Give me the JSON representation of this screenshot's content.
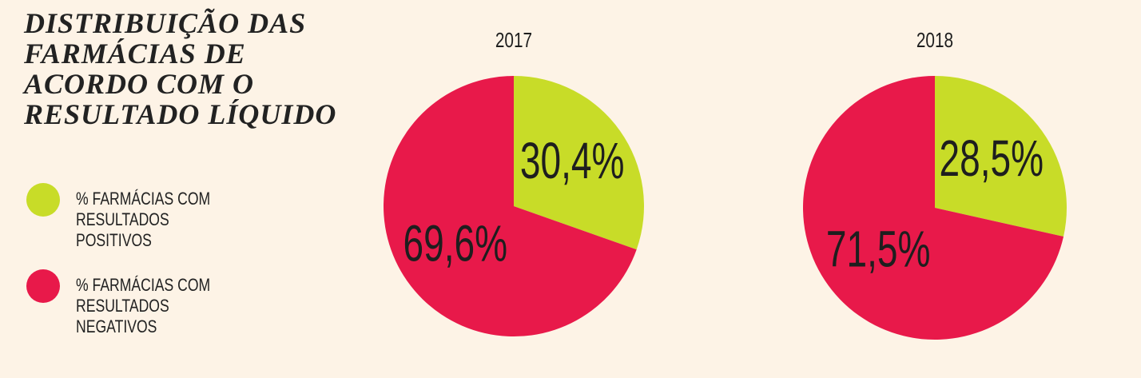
{
  "title": "DISTRIBUIÇÃO DAS FARMÁCIAS DE ACORDO COM O RESULTADO LÍQUIDO",
  "chart_data": [
    {
      "type": "pie",
      "title": "2017",
      "categories": [
        "% FARMÁCIAS COM RESULTADOS POSITIVOS",
        "% FARMÁCIAS COM RESULTADOS NEGATIVOS"
      ],
      "values": [
        30.4,
        69.6
      ],
      "value_labels": [
        "30,4%",
        "69,6%"
      ],
      "colors": [
        "#c8dc28",
        "#e8194a"
      ]
    },
    {
      "type": "pie",
      "title": "2018",
      "categories": [
        "% FARMÁCIAS COM RESULTADOS POSITIVOS",
        "% FARMÁCIAS COM RESULTADOS NEGATIVOS"
      ],
      "values": [
        28.5,
        71.5
      ],
      "value_labels": [
        "28,5%",
        "71,5%"
      ],
      "colors": [
        "#c8dc28",
        "#e8194a"
      ]
    }
  ]
}
